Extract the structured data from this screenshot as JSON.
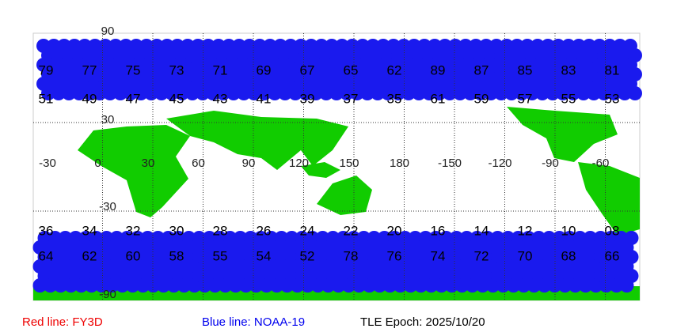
{
  "map": {
    "latitude_labels": [
      "90",
      "30",
      "-30",
      "-90"
    ],
    "longitude_labels": [
      "-30",
      "0",
      "30",
      "60",
      "90",
      "120",
      "150",
      "180",
      "-150",
      "-120",
      "-90",
      "-60"
    ],
    "north_track_labels": [
      "79",
      "77",
      "75",
      "73",
      "71",
      "69",
      "67",
      "65",
      "62",
      "89",
      "87",
      "85",
      "83",
      "81"
    ],
    "north_lower_labels": [
      "51",
      "49",
      "47",
      "45",
      "43",
      "41",
      "39",
      "37",
      "35",
      "61",
      "59",
      "57",
      "55",
      "53"
    ],
    "south_track_labels": [
      "36",
      "34",
      "32",
      "30",
      "28",
      "26",
      "24",
      "22",
      "20",
      "16",
      "14",
      "12",
      "10",
      "08"
    ],
    "south_lower_labels": [
      "64",
      "62",
      "60",
      "58",
      "55",
      "54",
      "52",
      "78",
      "76",
      "74",
      "72",
      "70",
      "68",
      "66"
    ]
  },
  "legend": {
    "red": "Red line: FY3D",
    "blue": "Blue line: NOAA-19",
    "epoch": "TLE Epoch: 2025/10/20"
  }
}
